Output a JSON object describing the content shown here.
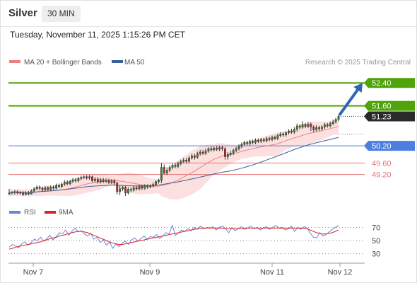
{
  "header": {
    "symbol": "Silver",
    "timeframe": "30 MIN"
  },
  "datetime": "Tuesday, November 11, 2025 1:15:26 PM CET",
  "source": "Research © 2025 Trading Central",
  "colors": {
    "resistance": "#4fa40a",
    "support": "#e57373",
    "pivot": "#4c7fde",
    "price_tag": "#2a2a2a",
    "ma20": "#f08080",
    "band_fill": "#fbd5d5",
    "ma50": "#3d5f9a",
    "candle_up": "#2f8a2f",
    "candle_down": "#cc2222",
    "rsi_line": "#6b86d6",
    "rsi_ma": "#dd2222",
    "arrow": "#2d67b0"
  },
  "chart_data": [
    {
      "type": "line",
      "title": "",
      "subtitle": "",
      "legend": [
        {
          "name": "MA 20 + Bollinger Bands",
          "color": "#f08080"
        },
        {
          "name": "MA 50",
          "color": "#3d5f9a"
        }
      ],
      "legend_position": "top-left",
      "x_ticks": [
        "Nov 7",
        "Nov 9",
        "Nov 11",
        "Nov 12"
      ],
      "y_range": [
        48.3,
        52.9
      ],
      "current_price": "51.23",
      "levels": [
        {
          "value": 52.4,
          "label": "52.40",
          "kind": "resistance",
          "tag": "filled"
        },
        {
          "value": 51.6,
          "label": "51.60",
          "kind": "resistance",
          "tag": "filled"
        },
        {
          "value": 50.2,
          "label": "50.20",
          "kind": "pivot",
          "tag": "filled"
        },
        {
          "value": 49.6,
          "label": "49.60",
          "kind": "support",
          "tag": "text"
        },
        {
          "value": 49.2,
          "label": "49.20",
          "kind": "support",
          "tag": "text"
        }
      ],
      "arrow": {
        "from_value": 51.23,
        "to_value": 52.4,
        "direction": "up"
      },
      "candles": [
        [
          48.52,
          48.55,
          48.7,
          48.48
        ],
        [
          48.55,
          48.58,
          48.62,
          48.5
        ],
        [
          48.58,
          48.6,
          48.65,
          48.5
        ],
        [
          48.6,
          48.55,
          48.65,
          48.5
        ],
        [
          48.55,
          48.57,
          48.62,
          48.5
        ],
        [
          48.57,
          48.5,
          48.62,
          48.45
        ],
        [
          48.5,
          48.55,
          48.62,
          48.47
        ],
        [
          48.55,
          48.52,
          48.62,
          48.47
        ],
        [
          48.52,
          48.62,
          48.68,
          48.5
        ],
        [
          48.62,
          48.7,
          48.76,
          48.58
        ],
        [
          48.7,
          48.76,
          48.82,
          48.65
        ],
        [
          48.76,
          48.72,
          48.82,
          48.65
        ],
        [
          48.72,
          48.66,
          48.78,
          48.6
        ],
        [
          48.66,
          48.74,
          48.8,
          48.62
        ],
        [
          48.74,
          48.68,
          48.8,
          48.62
        ],
        [
          48.68,
          48.76,
          48.82,
          48.62
        ],
        [
          48.76,
          48.72,
          48.82,
          48.66
        ],
        [
          48.72,
          48.82,
          48.88,
          48.68
        ],
        [
          48.82,
          48.78,
          48.88,
          48.72
        ],
        [
          48.78,
          48.86,
          48.92,
          48.72
        ],
        [
          48.86,
          48.94,
          49.0,
          48.8
        ],
        [
          48.94,
          48.88,
          49.0,
          48.82
        ],
        [
          48.88,
          48.96,
          49.02,
          48.82
        ],
        [
          48.96,
          49.02,
          49.08,
          48.9
        ],
        [
          49.02,
          48.98,
          49.08,
          48.92
        ],
        [
          48.98,
          49.06,
          49.12,
          48.92
        ],
        [
          49.06,
          49.1,
          49.16,
          49.0
        ],
        [
          49.1,
          49.12,
          49.18,
          49.04
        ],
        [
          49.12,
          49.08,
          49.18,
          49.02
        ],
        [
          49.08,
          49.12,
          49.18,
          49.02
        ],
        [
          49.12,
          48.98,
          49.16,
          48.92
        ],
        [
          48.98,
          49.04,
          49.1,
          48.92
        ],
        [
          49.04,
          48.95,
          49.1,
          48.88
        ],
        [
          48.95,
          49.02,
          49.08,
          48.88
        ],
        [
          49.02,
          48.96,
          49.08,
          48.9
        ],
        [
          48.96,
          49.0,
          49.06,
          48.9
        ],
        [
          49.0,
          48.92,
          49.06,
          48.86
        ],
        [
          48.92,
          48.98,
          49.04,
          48.86
        ],
        [
          48.98,
          48.9,
          49.04,
          48.84
        ],
        [
          48.9,
          48.6,
          48.95,
          48.5
        ],
        [
          48.6,
          48.7,
          48.8,
          48.48
        ],
        [
          48.7,
          48.75,
          48.8,
          48.62
        ],
        [
          48.75,
          48.55,
          48.8,
          48.45
        ],
        [
          48.55,
          48.68,
          48.75,
          48.5
        ],
        [
          48.68,
          48.65,
          48.75,
          48.58
        ],
        [
          48.65,
          48.74,
          48.8,
          48.6
        ],
        [
          48.74,
          48.7,
          48.8,
          48.64
        ],
        [
          48.7,
          48.78,
          48.84,
          48.64
        ],
        [
          48.78,
          48.72,
          48.84,
          48.66
        ],
        [
          48.72,
          48.8,
          48.86,
          48.66
        ],
        [
          48.8,
          48.76,
          48.86,
          48.7
        ],
        [
          48.76,
          48.8,
          48.86,
          48.72
        ],
        [
          48.8,
          48.85,
          48.92,
          48.74
        ],
        [
          48.85,
          48.95,
          49.0,
          48.8
        ],
        [
          48.95,
          49.0,
          49.05,
          48.88
        ],
        [
          49.0,
          49.45,
          49.6,
          48.9
        ],
        [
          49.45,
          49.25,
          49.55,
          49.2
        ],
        [
          49.25,
          49.35,
          49.45,
          49.18
        ],
        [
          49.35,
          49.45,
          49.52,
          49.28
        ],
        [
          49.45,
          49.52,
          49.58,
          49.38
        ],
        [
          49.52,
          49.48,
          49.6,
          49.42
        ],
        [
          49.48,
          49.58,
          49.65,
          49.42
        ],
        [
          49.58,
          49.65,
          49.72,
          49.52
        ],
        [
          49.65,
          49.7,
          49.78,
          49.6
        ],
        [
          49.7,
          49.66,
          49.78,
          49.58
        ],
        [
          49.66,
          49.78,
          49.85,
          49.6
        ],
        [
          49.78,
          49.85,
          49.92,
          49.72
        ],
        [
          49.85,
          49.8,
          49.92,
          49.72
        ],
        [
          49.8,
          49.92,
          50.0,
          49.75
        ],
        [
          49.92,
          49.98,
          50.06,
          49.86
        ],
        [
          49.98,
          49.94,
          50.06,
          49.88
        ],
        [
          49.94,
          50.02,
          50.1,
          49.88
        ],
        [
          50.02,
          50.1,
          50.15,
          49.96
        ],
        [
          50.1,
          50.06,
          50.18,
          50.0
        ],
        [
          50.06,
          50.12,
          50.18,
          50.0
        ],
        [
          50.12,
          50.08,
          50.2,
          50.02
        ],
        [
          50.08,
          50.14,
          50.2,
          50.02
        ],
        [
          50.14,
          50.1,
          50.2,
          50.02
        ],
        [
          50.1,
          49.82,
          50.15,
          49.72
        ],
        [
          49.82,
          49.9,
          49.98,
          49.72
        ],
        [
          49.9,
          49.95,
          50.02,
          49.84
        ],
        [
          49.95,
          50.04,
          50.1,
          49.88
        ],
        [
          50.04,
          50.1,
          50.16,
          49.98
        ],
        [
          50.1,
          50.18,
          50.25,
          50.04
        ],
        [
          50.18,
          50.25,
          50.32,
          50.12
        ],
        [
          50.25,
          50.32,
          50.38,
          50.2
        ],
        [
          50.32,
          50.28,
          50.38,
          50.22
        ],
        [
          50.28,
          50.36,
          50.42,
          50.22
        ],
        [
          50.36,
          50.32,
          50.42,
          50.26
        ],
        [
          50.32,
          50.4,
          50.46,
          50.26
        ],
        [
          50.4,
          50.36,
          50.46,
          50.3
        ],
        [
          50.36,
          50.42,
          50.48,
          50.3
        ],
        [
          50.42,
          50.38,
          50.48,
          50.32
        ],
        [
          50.38,
          50.46,
          50.52,
          50.32
        ],
        [
          50.46,
          50.42,
          50.52,
          50.36
        ],
        [
          50.42,
          50.5,
          50.56,
          50.36
        ],
        [
          50.5,
          50.46,
          50.56,
          50.4
        ],
        [
          50.46,
          50.56,
          50.62,
          50.4
        ],
        [
          50.56,
          50.62,
          50.68,
          50.5
        ],
        [
          50.62,
          50.58,
          50.68,
          50.52
        ],
        [
          50.58,
          50.66,
          50.72,
          50.52
        ],
        [
          50.66,
          50.72,
          50.78,
          50.6
        ],
        [
          50.72,
          50.68,
          50.8,
          50.62
        ],
        [
          50.68,
          50.78,
          50.85,
          50.62
        ],
        [
          50.78,
          50.9,
          50.98,
          50.7
        ],
        [
          50.9,
          50.85,
          50.96,
          50.78
        ],
        [
          50.85,
          50.95,
          51.06,
          50.8
        ],
        [
          50.95,
          50.88,
          51.0,
          50.82
        ],
        [
          50.88,
          50.96,
          51.04,
          50.82
        ],
        [
          50.96,
          50.86,
          51.02,
          50.72
        ],
        [
          50.86,
          50.76,
          50.92,
          50.68
        ],
        [
          50.76,
          50.84,
          50.92,
          50.7
        ],
        [
          50.84,
          50.8,
          50.9,
          50.72
        ],
        [
          50.8,
          50.86,
          50.92,
          50.74
        ],
        [
          50.86,
          50.94,
          51.0,
          50.8
        ],
        [
          50.94,
          50.9,
          51.0,
          50.84
        ],
        [
          50.9,
          50.98,
          51.05,
          50.84
        ],
        [
          50.98,
          51.04,
          51.12,
          50.92
        ],
        [
          51.04,
          51.12,
          51.18,
          50.98
        ],
        [
          51.12,
          51.23,
          51.28,
          51.06
        ]
      ]
    },
    {
      "type": "line",
      "title": "",
      "legend": [
        {
          "name": "RSI",
          "color": "#6b86d6"
        },
        {
          "name": "9MA",
          "color": "#dd2222"
        }
      ],
      "legend_position": "top-left",
      "y_range": [
        22,
        78
      ],
      "y_ticks": [
        70,
        50,
        30
      ],
      "rsi": [
        40,
        44,
        42,
        39,
        45,
        48,
        43,
        47,
        52,
        50,
        55,
        49,
        53,
        58,
        51,
        56,
        62,
        60,
        66,
        58,
        64,
        69,
        63,
        65,
        60,
        57,
        61,
        52,
        55,
        47,
        51,
        43,
        48,
        38,
        45,
        41,
        46,
        49,
        44,
        51,
        54,
        49,
        53,
        57,
        52,
        56,
        55,
        59,
        53,
        57,
        62,
        60,
        73,
        58,
        62,
        66,
        64,
        68,
        65,
        70,
        67,
        72,
        68,
        70,
        69,
        71,
        66,
        70,
        72,
        68,
        62,
        70,
        65,
        68,
        71,
        67,
        69,
        72,
        68,
        70,
        66,
        69,
        71,
        67,
        70,
        73,
        69,
        70,
        66,
        68,
        72,
        64,
        70,
        67,
        71,
        69,
        61,
        55,
        54,
        62,
        57,
        59,
        63,
        67,
        70,
        73
      ],
      "rsi_ma": [
        37,
        38,
        40,
        41,
        42,
        43,
        44,
        45,
        46,
        47,
        48,
        50,
        51,
        53,
        54,
        55,
        57,
        58,
        59,
        61,
        62,
        63,
        64,
        64,
        63,
        62,
        60,
        58,
        56,
        54,
        52,
        50,
        48,
        46,
        45,
        44,
        44,
        45,
        46,
        47,
        48,
        49,
        50,
        51,
        52,
        53,
        54,
        55,
        56,
        57,
        58,
        59,
        60,
        61,
        62,
        63,
        64,
        65,
        66,
        67,
        68,
        68,
        69,
        69,
        69,
        69,
        69,
        69,
        69,
        68,
        68,
        68,
        68,
        68,
        68,
        69,
        69,
        69,
        69,
        69,
        69,
        69,
        69,
        69,
        69,
        69,
        69,
        69,
        69,
        69,
        69,
        69,
        69,
        69,
        69,
        68,
        66,
        64,
        62,
        61,
        60,
        60,
        61,
        62,
        64,
        66
      ]
    }
  ]
}
